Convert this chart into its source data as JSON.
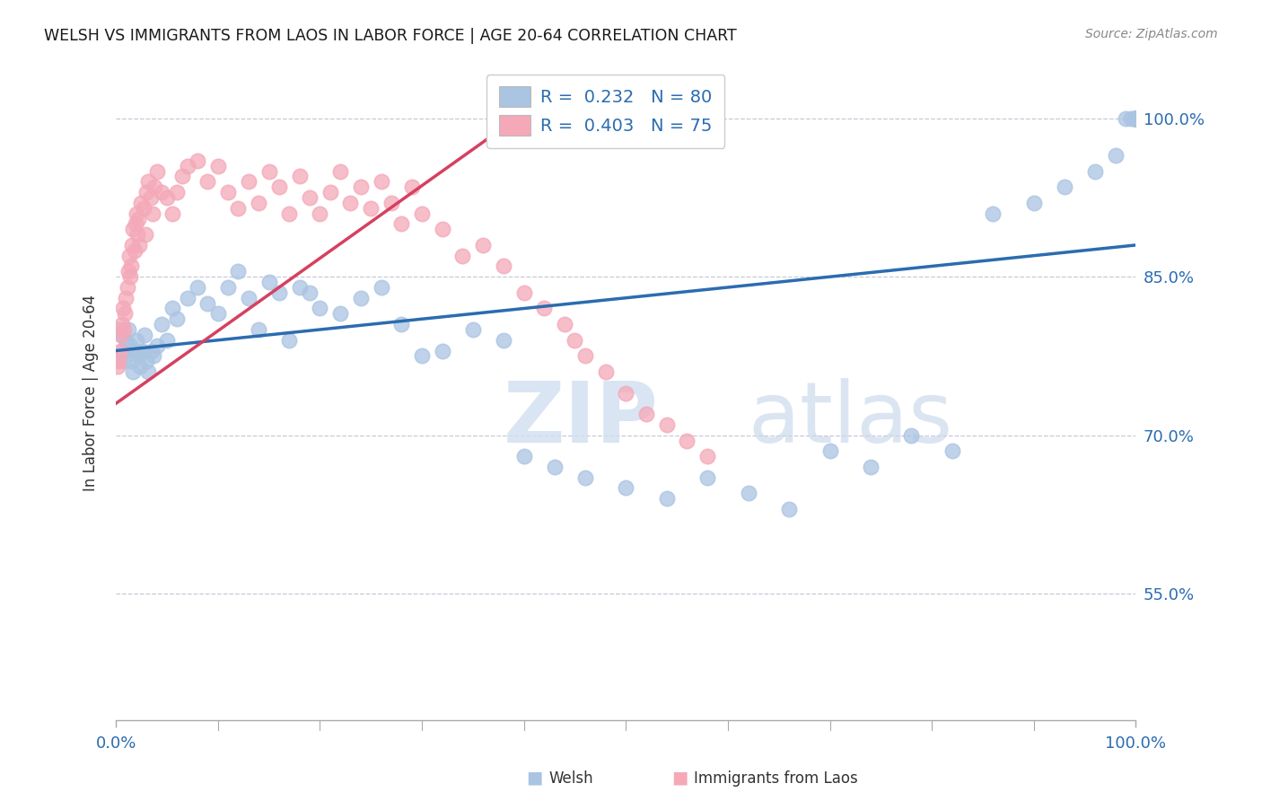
{
  "title": "WELSH VS IMMIGRANTS FROM LAOS IN LABOR FORCE | AGE 20-64 CORRELATION CHART",
  "source": "Source: ZipAtlas.com",
  "ylabel": "In Labor Force | Age 20-64",
  "legend_blue_r": "0.232",
  "legend_blue_n": "80",
  "legend_pink_r": "0.403",
  "legend_pink_n": "75",
  "legend_blue_label": "Welsh",
  "legend_pink_label": "Immigrants from Laos",
  "blue_color": "#aac4e2",
  "blue_line_color": "#2b6cb0",
  "pink_color": "#f4a8b8",
  "pink_line_color": "#d64060",
  "watermark_zip": "ZIP",
  "watermark_atlas": "atlas",
  "blue_x": [
    0.3,
    0.5,
    0.7,
    0.8,
    1.0,
    1.2,
    1.4,
    1.5,
    1.7,
    1.9,
    2.0,
    2.2,
    2.4,
    2.6,
    2.8,
    3.0,
    3.2,
    3.5,
    3.7,
    4.0,
    4.5,
    5.0,
    5.5,
    6.0,
    7.0,
    8.0,
    9.0,
    10.0,
    11.0,
    12.0,
    13.0,
    14.0,
    15.0,
    16.0,
    17.0,
    18.0,
    19.0,
    20.0,
    22.0,
    24.0,
    26.0,
    28.0,
    30.0,
    32.0,
    35.0,
    38.0,
    40.0,
    43.0,
    46.0,
    50.0,
    54.0,
    58.0,
    62.0,
    66.0,
    70.0,
    74.0,
    78.0,
    82.0,
    86.0,
    90.0,
    93.0,
    96.0,
    98.0,
    99.0,
    99.5,
    100.0,
    100.0,
    100.0,
    100.0,
    100.0,
    100.0,
    100.0,
    100.0,
    100.0,
    100.0,
    100.0,
    100.0,
    100.0,
    100.0,
    100.0
  ],
  "blue_y": [
    80.0,
    79.5,
    78.0,
    77.0,
    79.0,
    80.0,
    78.5,
    77.0,
    76.0,
    78.0,
    79.0,
    77.5,
    76.5,
    78.0,
    79.5,
    77.0,
    76.0,
    78.0,
    77.5,
    78.5,
    80.5,
    79.0,
    82.0,
    81.0,
    83.0,
    84.0,
    82.5,
    81.5,
    84.0,
    85.5,
    83.0,
    80.0,
    84.5,
    83.5,
    79.0,
    84.0,
    83.5,
    82.0,
    81.5,
    83.0,
    84.0,
    80.5,
    77.5,
    78.0,
    80.0,
    79.0,
    68.0,
    67.0,
    66.0,
    65.0,
    64.0,
    66.0,
    64.5,
    63.0,
    68.5,
    67.0,
    70.0,
    68.5,
    91.0,
    92.0,
    93.5,
    95.0,
    96.5,
    100.0,
    100.0,
    100.0,
    100.0,
    100.0,
    100.0,
    100.0,
    100.0,
    100.0,
    100.0,
    100.0,
    100.0,
    100.0,
    100.0,
    100.0,
    100.0,
    100.0
  ],
  "pink_x": [
    0.2,
    0.3,
    0.4,
    0.5,
    0.6,
    0.7,
    0.8,
    0.9,
    1.0,
    1.1,
    1.2,
    1.3,
    1.4,
    1.5,
    1.6,
    1.7,
    1.8,
    1.9,
    2.0,
    2.1,
    2.2,
    2.3,
    2.5,
    2.7,
    2.9,
    3.0,
    3.2,
    3.4,
    3.6,
    3.8,
    4.0,
    4.5,
    5.0,
    5.5,
    6.0,
    6.5,
    7.0,
    8.0,
    9.0,
    10.0,
    11.0,
    12.0,
    13.0,
    14.0,
    15.0,
    16.0,
    17.0,
    18.0,
    19.0,
    20.0,
    21.0,
    22.0,
    23.0,
    24.0,
    25.0,
    26.0,
    27.0,
    28.0,
    29.0,
    30.0,
    32.0,
    34.0,
    36.0,
    38.0,
    40.0,
    42.0,
    44.0,
    45.0,
    46.0,
    48.0,
    50.0,
    52.0,
    54.0,
    56.0,
    58.0
  ],
  "pink_y": [
    76.5,
    77.0,
    78.0,
    79.5,
    80.5,
    82.0,
    80.0,
    81.5,
    83.0,
    84.0,
    85.5,
    87.0,
    85.0,
    86.0,
    88.0,
    89.5,
    87.5,
    90.0,
    91.0,
    89.0,
    90.5,
    88.0,
    92.0,
    91.5,
    89.0,
    93.0,
    94.0,
    92.5,
    91.0,
    93.5,
    95.0,
    93.0,
    92.5,
    91.0,
    93.0,
    94.5,
    95.5,
    96.0,
    94.0,
    95.5,
    93.0,
    91.5,
    94.0,
    92.0,
    95.0,
    93.5,
    91.0,
    94.5,
    92.5,
    91.0,
    93.0,
    95.0,
    92.0,
    93.5,
    91.5,
    94.0,
    92.0,
    90.0,
    93.5,
    91.0,
    89.5,
    87.0,
    88.0,
    86.0,
    83.5,
    82.0,
    80.5,
    79.0,
    77.5,
    76.0,
    74.0,
    72.0,
    71.0,
    69.5,
    68.0
  ]
}
